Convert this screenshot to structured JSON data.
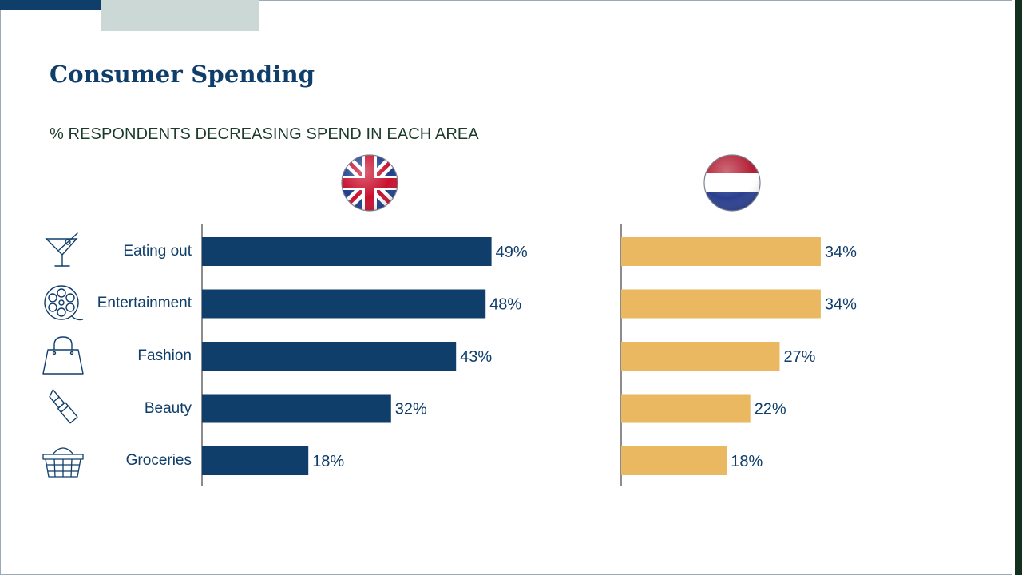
{
  "slide": {
    "title": "Consumer Spending",
    "subtitle": "% RESPONDENTS DECREASING SPEND IN EACH AREA"
  },
  "colors": {
    "uk_bar": "#0f3e6b",
    "nl_bar": "#e9b860",
    "text": "#0f3e6b",
    "axis": "#1a1a1a"
  },
  "icons": [
    "cocktail-glass-icon",
    "film-reel-icon",
    "handbag-icon",
    "lipstick-icon",
    "shopping-basket-icon"
  ],
  "chart_data": [
    {
      "type": "bar",
      "orientation": "horizontal",
      "categories": [
        "Eating out",
        "Entertainment",
        "Fashion",
        "Beauty",
        "Groceries"
      ],
      "series": [
        {
          "values": [
            49,
            48,
            43,
            32,
            18
          ]
        }
      ],
      "data_labels": [
        "49%",
        "48%",
        "43%",
        "32%",
        "18%"
      ],
      "xlim": [
        0,
        100
      ],
      "grid": false,
      "legend": "none",
      "color": "#0f3e6b"
    },
    {
      "type": "bar",
      "orientation": "horizontal",
      "categories": [
        "Eating out",
        "Entertainment",
        "Fashion",
        "Beauty",
        "Groceries"
      ],
      "series": [
        {
          "values": [
            34,
            34,
            27,
            22,
            18
          ]
        }
      ],
      "data_labels": [
        "34%",
        "34%",
        "27%",
        "22%",
        "18%"
      ],
      "xlim": [
        0,
        100
      ],
      "grid": false,
      "legend": "none",
      "color": "#e9b860"
    }
  ]
}
